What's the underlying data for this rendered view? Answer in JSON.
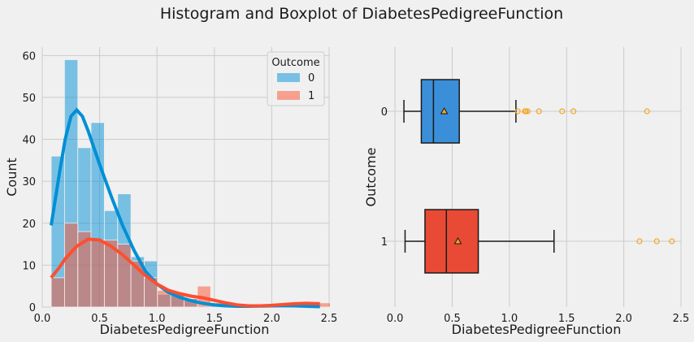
{
  "figure_title": "Histogram and Boxplot of DiabetesPedigreeFunction",
  "colors": {
    "background": "#f0f0f0",
    "grid": "#cbcbcb",
    "hist_0": "#008fd5",
    "hist_1": "#fc4f30",
    "box_0": "#3b8fd9",
    "box_1": "#e84a35",
    "outlier": "#f5a623"
  },
  "chart_data": [
    {
      "type": "histogram",
      "xlabel": "DiabetesPedigreeFunction",
      "ylabel": "Count",
      "xlim": [
        0.0,
        2.5
      ],
      "ylim": [
        0,
        62
      ],
      "xticks": [
        "0.0",
        "0.5",
        "1.0",
        "1.5",
        "2.0",
        "2.5"
      ],
      "yticks": [
        "0",
        "10",
        "20",
        "30",
        "40",
        "50",
        "60"
      ],
      "grid": true,
      "legend": {
        "title": "Outcome",
        "position": "top-right",
        "entries": [
          "0",
          "1"
        ]
      },
      "bin_edges": [
        0.078,
        0.194,
        0.31,
        0.425,
        0.541,
        0.657,
        0.773,
        0.889,
        1.004,
        1.12,
        1.236,
        1.352,
        1.468,
        1.583,
        1.699,
        1.815,
        1.931,
        2.046,
        2.162,
        2.278,
        2.394,
        2.51
      ],
      "series": [
        {
          "name": "0",
          "counts": [
            36,
            59,
            38,
            44,
            23,
            27,
            12,
            11,
            3,
            3,
            2,
            0,
            1,
            0,
            0,
            0,
            0,
            0,
            0,
            1,
            0
          ],
          "kde_x": [
            0.078,
            0.15,
            0.2,
            0.25,
            0.3,
            0.35,
            0.4,
            0.5,
            0.6,
            0.7,
            0.8,
            0.9,
            1.0,
            1.1,
            1.2,
            1.3,
            1.4,
            1.5,
            1.6,
            1.7,
            1.8,
            1.9,
            2.0,
            2.1,
            2.2,
            2.3,
            2.42
          ],
          "kde_y": [
            19.5,
            32,
            40,
            45.5,
            47,
            45.5,
            42,
            34,
            26.5,
            19.5,
            13.5,
            8.5,
            5.5,
            3.5,
            2.3,
            1.5,
            0.9,
            0.5,
            0.3,
            0.2,
            0.2,
            0.25,
            0.3,
            0.35,
            0.3,
            0.2,
            0.1
          ]
        },
        {
          "name": "1",
          "counts": [
            7,
            20,
            18,
            16,
            16,
            15,
            11,
            7,
            4,
            3,
            2,
            5,
            1,
            0,
            0,
            0,
            0,
            0,
            0,
            0,
            1
          ],
          "kde_x": [
            0.078,
            0.15,
            0.2,
            0.3,
            0.4,
            0.5,
            0.6,
            0.7,
            0.8,
            0.9,
            1.0,
            1.1,
            1.2,
            1.3,
            1.4,
            1.5,
            1.6,
            1.7,
            1.8,
            1.9,
            2.0,
            2.1,
            2.2,
            2.3,
            2.42
          ],
          "kde_y": [
            7,
            9.5,
            11.5,
            14.5,
            16.2,
            16,
            14.5,
            12.5,
            10,
            7.5,
            5.5,
            4,
            3.2,
            2.6,
            2.2,
            1.6,
            1,
            0.5,
            0.3,
            0.3,
            0.4,
            0.6,
            0.8,
            0.9,
            0.8
          ]
        }
      ]
    },
    {
      "type": "boxplot",
      "xlabel": "DiabetesPedigreeFunction",
      "ylabel": "Outcome",
      "xlim": [
        -0.1,
        2.5
      ],
      "xticks": [
        "0.0",
        "0.5",
        "1.0",
        "1.5",
        "2.0",
        "2.5"
      ],
      "grid": true,
      "categories": [
        "0",
        "1"
      ],
      "boxes": [
        {
          "name": "0",
          "whisker_low": 0.078,
          "q1": 0.23,
          "median": 0.336,
          "q3": 0.562,
          "whisker_high": 1.057,
          "mean": 0.43,
          "outliers": [
            1.073,
            1.136,
            1.144,
            1.159,
            1.258,
            1.461,
            1.56,
            2.203
          ]
        },
        {
          "name": "1",
          "whisker_low": 0.088,
          "q1": 0.262,
          "median": 0.449,
          "q3": 0.728,
          "whisker_high": 1.39,
          "mean": 0.55,
          "outliers": [
            2.137,
            2.288,
            2.42
          ]
        }
      ]
    }
  ]
}
